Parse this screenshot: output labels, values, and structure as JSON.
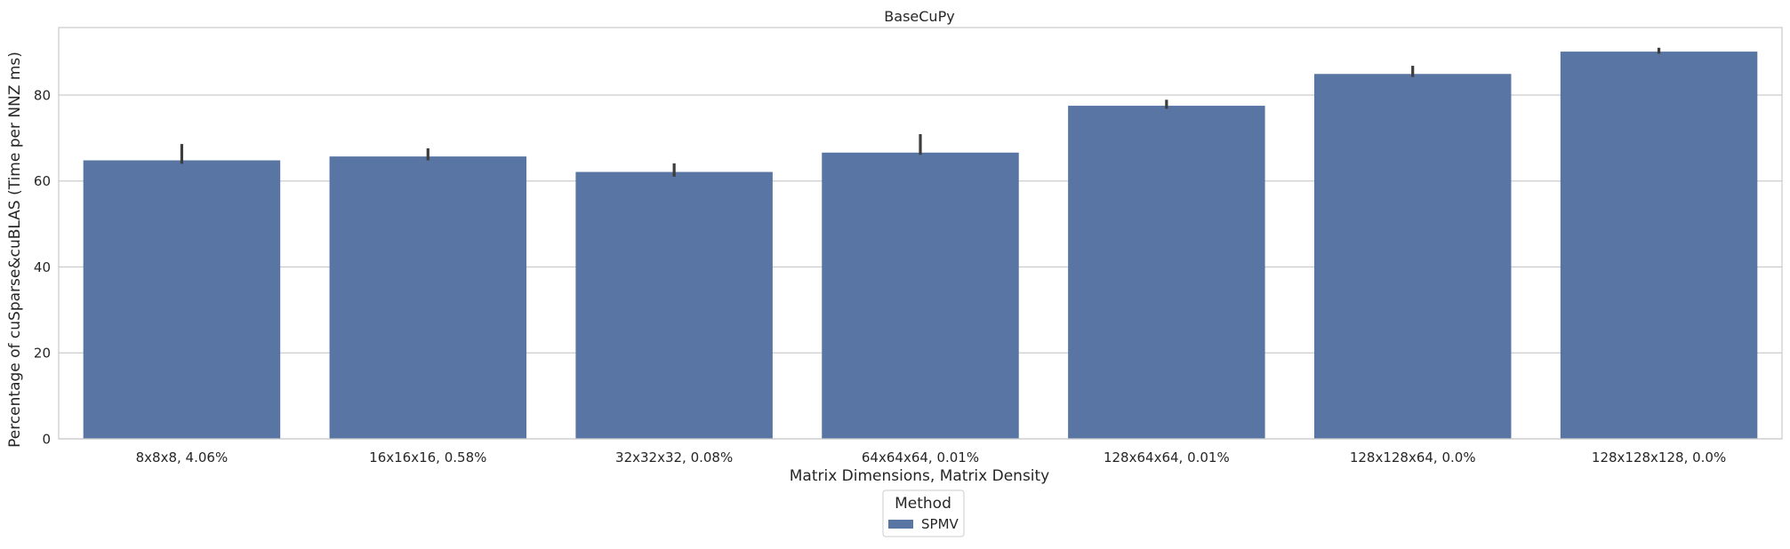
{
  "chart_data": {
    "type": "bar",
    "title": "BaseCuPy",
    "xlabel": "Matrix Dimensions, Matrix Density",
    "ylabel": "Percentage of cuSparse&cuBLAS (Time per NNZ ms)",
    "categories": [
      "8x8x8, 4.06%",
      "16x16x16, 0.58%",
      "32x32x32, 0.08%",
      "64x64x64, 0.01%",
      "128x64x64, 0.01%",
      "128x128x64, 0.0%",
      "128x128x128, 0.0%"
    ],
    "series": [
      {
        "name": "SPMV",
        "color": "#5975a4",
        "values": [
          64.8,
          65.7,
          62.1,
          66.6,
          77.5,
          84.9,
          90.1
        ],
        "error_low": [
          64.0,
          64.8,
          61.0,
          66.1,
          76.8,
          84.2,
          89.6
        ],
        "error_high": [
          68.6,
          67.6,
          64.1,
          70.9,
          78.9,
          86.8,
          91.0
        ]
      }
    ],
    "ylim": [
      0,
      95.7
    ],
    "yticks": [
      0,
      20,
      40,
      60,
      80
    ],
    "grid": true,
    "legend": {
      "title": "Method",
      "placement": "bottom-center"
    }
  }
}
